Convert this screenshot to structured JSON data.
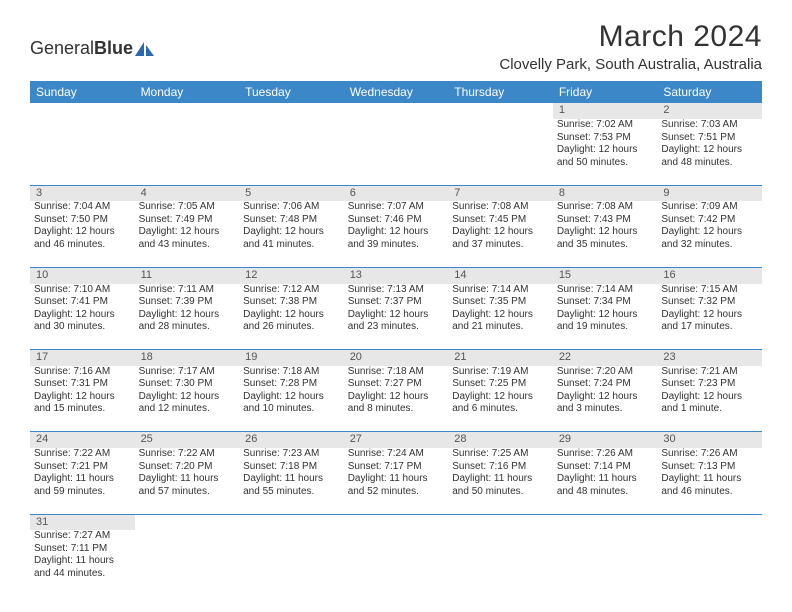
{
  "brand": {
    "name1": "General",
    "name2": "Blue"
  },
  "title": "March 2024",
  "location": "Clovelly Park, South Australia, Australia",
  "colors": {
    "header_bg": "#3b87c8",
    "header_fg": "#ffffff",
    "daynum_bg": "#e7e7e7",
    "text": "#333333",
    "divider": "#3b87c8"
  },
  "fonts": {
    "title_size": 30,
    "location_size": 15,
    "th_size": 12,
    "cell_size": 10,
    "daynum_size": 11
  },
  "day_headers": [
    "Sunday",
    "Monday",
    "Tuesday",
    "Wednesday",
    "Thursday",
    "Friday",
    "Saturday"
  ],
  "weeks": [
    [
      null,
      null,
      null,
      null,
      null,
      {
        "d": "1",
        "sr": "7:02 AM",
        "ss": "7:53 PM",
        "dl": "12 hours and 50 minutes."
      },
      {
        "d": "2",
        "sr": "7:03 AM",
        "ss": "7:51 PM",
        "dl": "12 hours and 48 minutes."
      }
    ],
    [
      {
        "d": "3",
        "sr": "7:04 AM",
        "ss": "7:50 PM",
        "dl": "12 hours and 46 minutes."
      },
      {
        "d": "4",
        "sr": "7:05 AM",
        "ss": "7:49 PM",
        "dl": "12 hours and 43 minutes."
      },
      {
        "d": "5",
        "sr": "7:06 AM",
        "ss": "7:48 PM",
        "dl": "12 hours and 41 minutes."
      },
      {
        "d": "6",
        "sr": "7:07 AM",
        "ss": "7:46 PM",
        "dl": "12 hours and 39 minutes."
      },
      {
        "d": "7",
        "sr": "7:08 AM",
        "ss": "7:45 PM",
        "dl": "12 hours and 37 minutes."
      },
      {
        "d": "8",
        "sr": "7:08 AM",
        "ss": "7:43 PM",
        "dl": "12 hours and 35 minutes."
      },
      {
        "d": "9",
        "sr": "7:09 AM",
        "ss": "7:42 PM",
        "dl": "12 hours and 32 minutes."
      }
    ],
    [
      {
        "d": "10",
        "sr": "7:10 AM",
        "ss": "7:41 PM",
        "dl": "12 hours and 30 minutes."
      },
      {
        "d": "11",
        "sr": "7:11 AM",
        "ss": "7:39 PM",
        "dl": "12 hours and 28 minutes."
      },
      {
        "d": "12",
        "sr": "7:12 AM",
        "ss": "7:38 PM",
        "dl": "12 hours and 26 minutes."
      },
      {
        "d": "13",
        "sr": "7:13 AM",
        "ss": "7:37 PM",
        "dl": "12 hours and 23 minutes."
      },
      {
        "d": "14",
        "sr": "7:14 AM",
        "ss": "7:35 PM",
        "dl": "12 hours and 21 minutes."
      },
      {
        "d": "15",
        "sr": "7:14 AM",
        "ss": "7:34 PM",
        "dl": "12 hours and 19 minutes."
      },
      {
        "d": "16",
        "sr": "7:15 AM",
        "ss": "7:32 PM",
        "dl": "12 hours and 17 minutes."
      }
    ],
    [
      {
        "d": "17",
        "sr": "7:16 AM",
        "ss": "7:31 PM",
        "dl": "12 hours and 15 minutes."
      },
      {
        "d": "18",
        "sr": "7:17 AM",
        "ss": "7:30 PM",
        "dl": "12 hours and 12 minutes."
      },
      {
        "d": "19",
        "sr": "7:18 AM",
        "ss": "7:28 PM",
        "dl": "12 hours and 10 minutes."
      },
      {
        "d": "20",
        "sr": "7:18 AM",
        "ss": "7:27 PM",
        "dl": "12 hours and 8 minutes."
      },
      {
        "d": "21",
        "sr": "7:19 AM",
        "ss": "7:25 PM",
        "dl": "12 hours and 6 minutes."
      },
      {
        "d": "22",
        "sr": "7:20 AM",
        "ss": "7:24 PM",
        "dl": "12 hours and 3 minutes."
      },
      {
        "d": "23",
        "sr": "7:21 AM",
        "ss": "7:23 PM",
        "dl": "12 hours and 1 minute."
      }
    ],
    [
      {
        "d": "24",
        "sr": "7:22 AM",
        "ss": "7:21 PM",
        "dl": "11 hours and 59 minutes."
      },
      {
        "d": "25",
        "sr": "7:22 AM",
        "ss": "7:20 PM",
        "dl": "11 hours and 57 minutes."
      },
      {
        "d": "26",
        "sr": "7:23 AM",
        "ss": "7:18 PM",
        "dl": "11 hours and 55 minutes."
      },
      {
        "d": "27",
        "sr": "7:24 AM",
        "ss": "7:17 PM",
        "dl": "11 hours and 52 minutes."
      },
      {
        "d": "28",
        "sr": "7:25 AM",
        "ss": "7:16 PM",
        "dl": "11 hours and 50 minutes."
      },
      {
        "d": "29",
        "sr": "7:26 AM",
        "ss": "7:14 PM",
        "dl": "11 hours and 48 minutes."
      },
      {
        "d": "30",
        "sr": "7:26 AM",
        "ss": "7:13 PM",
        "dl": "11 hours and 46 minutes."
      }
    ],
    [
      {
        "d": "31",
        "sr": "7:27 AM",
        "ss": "7:11 PM",
        "dl": "11 hours and 44 minutes."
      },
      null,
      null,
      null,
      null,
      null,
      null
    ]
  ],
  "labels": {
    "sunrise": "Sunrise:",
    "sunset": "Sunset:",
    "daylight": "Daylight:"
  }
}
